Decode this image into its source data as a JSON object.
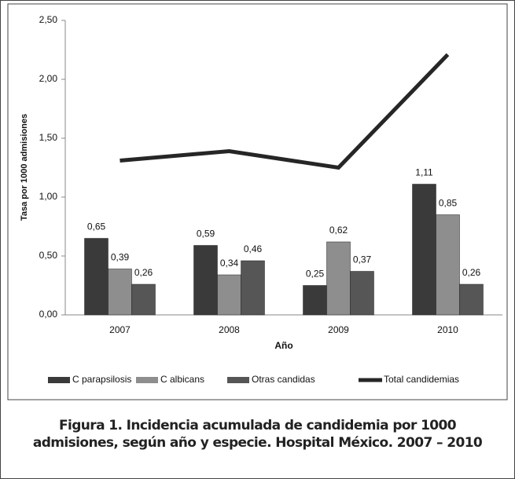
{
  "chart_data": {
    "type": "bar",
    "y_label": "Tasa por 1000 admisiones",
    "x_label": "Año",
    "categories": [
      "2007",
      "2008",
      "2009",
      "2010"
    ],
    "series": [
      {
        "name": "C parapsilosis",
        "color": "#3a3a3a",
        "type": "bar",
        "values": [
          0.65,
          0.59,
          0.25,
          1.11
        ],
        "value_labels": [
          "0,65",
          "0,59",
          "0,25",
          "1,11"
        ]
      },
      {
        "name": "C albicans",
        "color": "#8e8e8e",
        "type": "bar",
        "values": [
          0.39,
          0.34,
          0.62,
          0.85
        ],
        "value_labels": [
          "0,39",
          "0,34",
          "0,62",
          "0,85"
        ]
      },
      {
        "name": "Otras candidas",
        "color": "#565656",
        "type": "bar",
        "values": [
          0.26,
          0.46,
          0.37,
          0.26
        ],
        "value_labels": [
          "0,26",
          "0,46",
          "0,37",
          "0,26"
        ]
      },
      {
        "name": "Total candidemias",
        "color": "#262626",
        "type": "line",
        "values": [
          1.31,
          1.39,
          1.25,
          2.21
        ]
      }
    ],
    "ylim": [
      0,
      2.5
    ],
    "yticks": [
      {
        "value": 0,
        "label": "0,00"
      },
      {
        "value": 0.5,
        "label": "0,50"
      },
      {
        "value": 1,
        "label": "1,00"
      },
      {
        "value": 1.5,
        "label": "1,50"
      },
      {
        "value": 2,
        "label": "2,00"
      },
      {
        "value": 2.5,
        "label": "2,50"
      }
    ],
    "legend": "bottom",
    "caption": "Figura 1. Incidencia acumulada de candidemia por 1000 admisiones, según año y especie. Hospital México. 2007 – 2010"
  }
}
